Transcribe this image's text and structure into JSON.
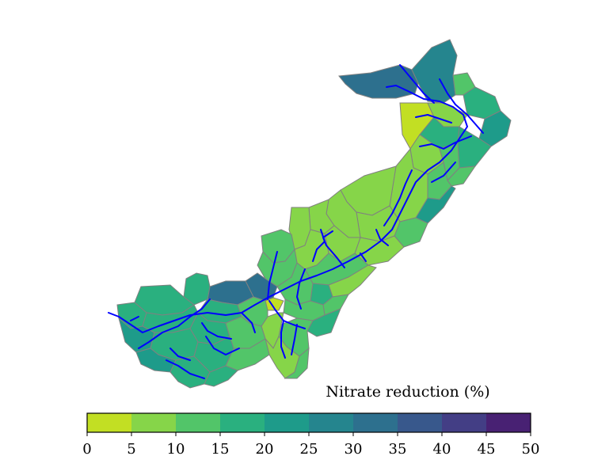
{
  "legend": {
    "title": "Nitrate reduction (%)",
    "ticks": [
      "0",
      "5",
      "10",
      "15",
      "20",
      "25",
      "30",
      "35",
      "40",
      "45",
      "50"
    ],
    "bins": [
      {
        "range": [
          0,
          5
        ],
        "color": "#c2df23"
      },
      {
        "range": [
          5,
          10
        ],
        "color": "#86d549"
      },
      {
        "range": [
          10,
          15
        ],
        "color": "#52c569"
      },
      {
        "range": [
          15,
          20
        ],
        "color": "#2ab07f"
      },
      {
        "range": [
          20,
          25
        ],
        "color": "#1e9b8a"
      },
      {
        "range": [
          25,
          30
        ],
        "color": "#25858e"
      },
      {
        "range": [
          30,
          35
        ],
        "color": "#2d708e"
      },
      {
        "range": [
          35,
          40
        ],
        "color": "#38588c"
      },
      {
        "range": [
          40,
          45
        ],
        "color": "#433e85"
      },
      {
        "range": [
          45,
          50
        ],
        "color": "#482173"
      }
    ]
  },
  "colors": {
    "river": "#0000ff",
    "boundary": "#808080"
  }
}
